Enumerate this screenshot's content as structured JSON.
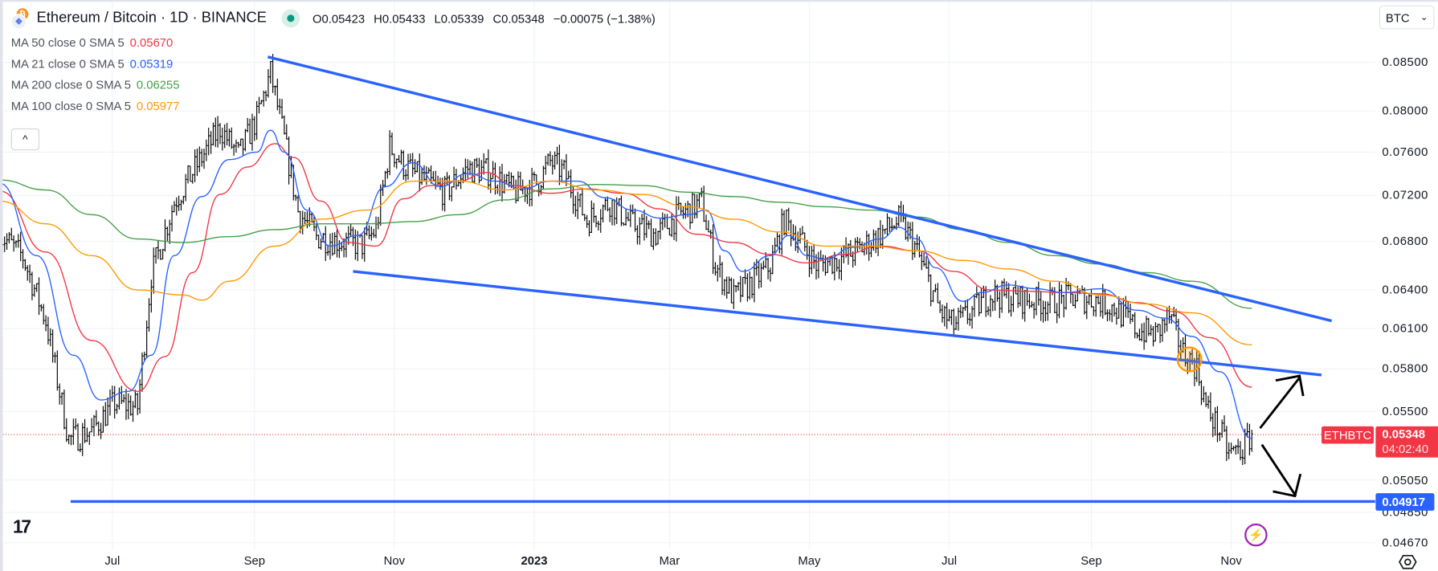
{
  "header": {
    "title": "Ethereum / Bitcoin · 1D · BINANCE",
    "open": "O0.05423",
    "high": "H0.05433",
    "low": "L0.05339",
    "close": "C0.05348",
    "change": "−0.00075 (−1.38%)",
    "market_status_color": "#089981"
  },
  "indicators": [
    {
      "label": "MA 50 close 0 SMA 5",
      "value": "0.05670",
      "color": "#f23645"
    },
    {
      "label": "MA 21 close 0 SMA 5",
      "value": "0.05319",
      "color": "#2962ff"
    },
    {
      "label": "MA 200 close 0 SMA 5",
      "value": "0.06255",
      "color": "#43a047"
    },
    {
      "label": "MA 100 close 0 SMA 5",
      "value": "0.05977",
      "color": "#ff9800"
    }
  ],
  "collapse_label": "^",
  "currency": "BTC",
  "symbol_tag": "ETHBTC",
  "last_price": "0.05348",
  "countdown": "04:02:40",
  "support_price": "0.04917",
  "chart_data": {
    "type": "ohlc",
    "scale": "log",
    "ylim": [
      0.0462,
      0.087
    ],
    "grid": true,
    "y_ticks": [
      "0.08500",
      "0.08000",
      "0.07600",
      "0.07200",
      "0.06800",
      "0.06400",
      "0.06100",
      "0.05800",
      "0.05500",
      "0.05050",
      "0.04850",
      "0.04670"
    ],
    "x_ticks": [
      {
        "label": "Jul",
        "date": "2022-07-01",
        "bold": false
      },
      {
        "label": "Sep",
        "date": "2022-09-01",
        "bold": false
      },
      {
        "label": "Nov",
        "date": "2022-11-01",
        "bold": false
      },
      {
        "label": "2023",
        "date": "2023-01-01",
        "bold": true
      },
      {
        "label": "Mar",
        "date": "2023-03-01",
        "bold": false
      },
      {
        "label": "May",
        "date": "2023-05-01",
        "bold": false
      },
      {
        "label": "Jul",
        "date": "2023-07-01",
        "bold": false
      },
      {
        "label": "Sep",
        "date": "2023-09-01",
        "bold": false
      },
      {
        "label": "Nov",
        "date": "2023-11-01",
        "bold": false
      }
    ],
    "close_series": [
      [
        "2022-05-13",
        0.0686
      ],
      [
        "2022-05-23",
        0.0667
      ],
      [
        "2022-06-02",
        0.0616
      ],
      [
        "2022-06-12",
        0.0531
      ],
      [
        "2022-06-22",
        0.0537
      ],
      [
        "2022-07-02",
        0.0556
      ],
      [
        "2022-07-12",
        0.0553
      ],
      [
        "2022-07-18",
        0.0652
      ],
      [
        "2022-07-28",
        0.0714
      ],
      [
        "2022-08-07",
        0.0748
      ],
      [
        "2022-08-17",
        0.0783
      ],
      [
        "2022-08-25",
        0.0757
      ],
      [
        "2022-09-02",
        0.0792
      ],
      [
        "2022-09-08",
        0.0839
      ],
      [
        "2022-09-14",
        0.0772
      ],
      [
        "2022-09-20",
        0.0706
      ],
      [
        "2022-09-28",
        0.0684
      ],
      [
        "2022-10-08",
        0.068
      ],
      [
        "2022-10-18",
        0.0677
      ],
      [
        "2022-10-24",
        0.069
      ],
      [
        "2022-10-30",
        0.0765
      ],
      [
        "2022-11-05",
        0.0748
      ],
      [
        "2022-11-13",
        0.0735
      ],
      [
        "2022-11-23",
        0.0723
      ],
      [
        "2022-12-03",
        0.0745
      ],
      [
        "2022-12-13",
        0.0741
      ],
      [
        "2022-12-23",
        0.0723
      ],
      [
        "2023-01-02",
        0.0731
      ],
      [
        "2023-01-08",
        0.0751
      ],
      [
        "2023-01-14",
        0.0741
      ],
      [
        "2023-01-24",
        0.0698
      ],
      [
        "2023-02-03",
        0.0714
      ],
      [
        "2023-02-13",
        0.0694
      ],
      [
        "2023-02-23",
        0.0686
      ],
      [
        "2023-03-05",
        0.0702
      ],
      [
        "2023-03-15",
        0.0714
      ],
      [
        "2023-03-21",
        0.066
      ],
      [
        "2023-03-29",
        0.0634
      ],
      [
        "2023-04-08",
        0.0649
      ],
      [
        "2023-04-14",
        0.066
      ],
      [
        "2023-04-20",
        0.0698
      ],
      [
        "2023-04-26",
        0.0684
      ],
      [
        "2023-05-04",
        0.066
      ],
      [
        "2023-05-12",
        0.0664
      ],
      [
        "2023-05-22",
        0.0672
      ],
      [
        "2023-06-01",
        0.0686
      ],
      [
        "2023-06-09",
        0.0698
      ],
      [
        "2023-06-15",
        0.068
      ],
      [
        "2023-06-21",
        0.0652
      ],
      [
        "2023-06-27",
        0.0623
      ],
      [
        "2023-07-03",
        0.0612
      ],
      [
        "2023-07-11",
        0.0623
      ],
      [
        "2023-07-19",
        0.0637
      ],
      [
        "2023-07-27",
        0.0634
      ],
      [
        "2023-08-04",
        0.0632
      ],
      [
        "2023-08-14",
        0.063
      ],
      [
        "2023-08-24",
        0.0634
      ],
      [
        "2023-09-03",
        0.0632
      ],
      [
        "2023-09-11",
        0.0626
      ],
      [
        "2023-09-21",
        0.0609
      ],
      [
        "2023-09-29",
        0.0605
      ],
      [
        "2023-10-05",
        0.0619
      ],
      [
        "2023-10-11",
        0.0592
      ],
      [
        "2023-10-17",
        0.0581
      ],
      [
        "2023-10-21",
        0.0553
      ],
      [
        "2023-10-27",
        0.0537
      ],
      [
        "2023-10-31",
        0.0522
      ],
      [
        "2023-11-06",
        0.0525
      ],
      [
        "2023-11-10",
        0.05348
      ]
    ],
    "series": [
      {
        "name": "MA 50 close 0 SMA 5",
        "color": "#f23645",
        "points": [
          [
            "2022-05-13",
            0.0724
          ],
          [
            "2022-06-02",
            0.0671
          ],
          [
            "2022-06-22",
            0.0601
          ],
          [
            "2022-07-12",
            0.0564
          ],
          [
            "2022-07-24",
            0.0589
          ],
          [
            "2022-08-05",
            0.0654
          ],
          [
            "2022-08-17",
            0.0721
          ],
          [
            "2022-08-29",
            0.0746
          ],
          [
            "2022-09-10",
            0.0768
          ],
          [
            "2022-09-18",
            0.0755
          ],
          [
            "2022-09-30",
            0.0715
          ],
          [
            "2022-10-12",
            0.0679
          ],
          [
            "2022-10-24",
            0.0676
          ],
          [
            "2022-11-05",
            0.0717
          ],
          [
            "2022-11-17",
            0.0729
          ],
          [
            "2022-11-29",
            0.0733
          ],
          [
            "2022-12-11",
            0.0741
          ],
          [
            "2022-12-23",
            0.0729
          ],
          [
            "2023-01-08",
            0.0722
          ],
          [
            "2023-01-24",
            0.0726
          ],
          [
            "2023-02-09",
            0.0722
          ],
          [
            "2023-02-25",
            0.0708
          ],
          [
            "2023-03-13",
            0.0686
          ],
          [
            "2023-03-29",
            0.0679
          ],
          [
            "2023-04-14",
            0.0669
          ],
          [
            "2023-04-30",
            0.0662
          ],
          [
            "2023-05-16",
            0.0669
          ],
          [
            "2023-06-01",
            0.0676
          ],
          [
            "2023-06-17",
            0.0672
          ],
          [
            "2023-07-03",
            0.0655
          ],
          [
            "2023-07-19",
            0.064
          ],
          [
            "2023-08-04",
            0.0639
          ],
          [
            "2023-08-20",
            0.0638
          ],
          [
            "2023-09-05",
            0.0637
          ],
          [
            "2023-09-21",
            0.063
          ],
          [
            "2023-10-07",
            0.0623
          ],
          [
            "2023-10-23",
            0.0603
          ],
          [
            "2023-11-10",
            0.0567
          ]
        ]
      },
      {
        "name": "MA 21 close 0 SMA 5",
        "color": "#2962ff",
        "points": [
          [
            "2022-05-13",
            0.0731
          ],
          [
            "2022-05-29",
            0.0668
          ],
          [
            "2022-06-14",
            0.059
          ],
          [
            "2022-06-26",
            0.0558
          ],
          [
            "2022-07-08",
            0.0564
          ],
          [
            "2022-07-18",
            0.059
          ],
          [
            "2022-07-28",
            0.0668
          ],
          [
            "2022-08-09",
            0.0719
          ],
          [
            "2022-08-21",
            0.0753
          ],
          [
            "2022-09-02",
            0.076
          ],
          [
            "2022-09-08",
            0.0781
          ],
          [
            "2022-09-14",
            0.076
          ],
          [
            "2022-09-24",
            0.0707
          ],
          [
            "2022-10-04",
            0.0676
          ],
          [
            "2022-10-16",
            0.0685
          ],
          [
            "2022-10-28",
            0.0728
          ],
          [
            "2022-11-09",
            0.075
          ],
          [
            "2022-11-21",
            0.0728
          ],
          [
            "2022-12-03",
            0.074
          ],
          [
            "2022-12-15",
            0.0733
          ],
          [
            "2022-12-27",
            0.0726
          ],
          [
            "2023-01-08",
            0.0733
          ],
          [
            "2023-01-20",
            0.0733
          ],
          [
            "2023-02-01",
            0.0718
          ],
          [
            "2023-02-13",
            0.0707
          ],
          [
            "2023-02-25",
            0.07
          ],
          [
            "2023-03-09",
            0.0703
          ],
          [
            "2023-03-17",
            0.0707
          ],
          [
            "2023-03-25",
            0.0672
          ],
          [
            "2023-04-02",
            0.0655
          ],
          [
            "2023-04-14",
            0.0668
          ],
          [
            "2023-04-22",
            0.0685
          ],
          [
            "2023-04-30",
            0.0668
          ],
          [
            "2023-05-08",
            0.0665
          ],
          [
            "2023-05-20",
            0.0675
          ],
          [
            "2023-06-01",
            0.0682
          ],
          [
            "2023-06-09",
            0.0692
          ],
          [
            "2023-06-17",
            0.0682
          ],
          [
            "2023-06-25",
            0.0658
          ],
          [
            "2023-07-07",
            0.0631
          ],
          [
            "2023-07-15",
            0.0638
          ],
          [
            "2023-07-27",
            0.0644
          ],
          [
            "2023-08-08",
            0.0641
          ],
          [
            "2023-08-20",
            0.0638
          ],
          [
            "2023-09-05",
            0.0641
          ],
          [
            "2023-09-21",
            0.0624
          ],
          [
            "2023-10-03",
            0.0618
          ],
          [
            "2023-10-15",
            0.0604
          ],
          [
            "2023-10-27",
            0.0578
          ],
          [
            "2023-11-10",
            0.05319
          ]
        ]
      },
      {
        "name": "MA 200 close 0 SMA 5",
        "color": "#43a047",
        "points": [
          [
            "2022-05-13",
            0.0734
          ],
          [
            "2022-06-02",
            0.0725
          ],
          [
            "2022-06-22",
            0.0703
          ],
          [
            "2022-07-12",
            0.0682
          ],
          [
            "2022-08-01",
            0.0679
          ],
          [
            "2022-08-21",
            0.0684
          ],
          [
            "2022-09-10",
            0.069
          ],
          [
            "2022-09-30",
            0.0695
          ],
          [
            "2022-10-20",
            0.0695
          ],
          [
            "2022-11-09",
            0.0697
          ],
          [
            "2022-11-29",
            0.0703
          ],
          [
            "2022-12-19",
            0.0716
          ],
          [
            "2023-01-08",
            0.0726
          ],
          [
            "2023-01-28",
            0.073
          ],
          [
            "2023-02-17",
            0.0729
          ],
          [
            "2023-03-09",
            0.0723
          ],
          [
            "2023-03-29",
            0.0719
          ],
          [
            "2023-04-18",
            0.0714
          ],
          [
            "2023-05-08",
            0.071
          ],
          [
            "2023-05-28",
            0.0707
          ],
          [
            "2023-06-17",
            0.0701
          ],
          [
            "2023-07-07",
            0.069
          ],
          [
            "2023-07-27",
            0.0679
          ],
          [
            "2023-08-16",
            0.0668
          ],
          [
            "2023-09-05",
            0.0661
          ],
          [
            "2023-09-25",
            0.0654
          ],
          [
            "2023-10-15",
            0.0647
          ],
          [
            "2023-11-10",
            0.06255
          ]
        ]
      },
      {
        "name": "MA 100 close 0 SMA 5",
        "color": "#ff9800",
        "points": [
          [
            "2022-05-13",
            0.0715
          ],
          [
            "2022-06-02",
            0.0695
          ],
          [
            "2022-06-22",
            0.0668
          ],
          [
            "2022-07-12",
            0.064
          ],
          [
            "2022-08-01",
            0.0636
          ],
          [
            "2022-08-09",
            0.0632
          ],
          [
            "2022-08-21",
            0.0647
          ],
          [
            "2022-09-10",
            0.0676
          ],
          [
            "2022-09-30",
            0.0699
          ],
          [
            "2022-10-20",
            0.0707
          ],
          [
            "2022-11-09",
            0.0733
          ],
          [
            "2022-11-29",
            0.0733
          ],
          [
            "2022-12-19",
            0.0725
          ],
          [
            "2023-01-08",
            0.0733
          ],
          [
            "2023-01-28",
            0.0725
          ],
          [
            "2023-02-17",
            0.0721
          ],
          [
            "2023-03-09",
            0.071
          ],
          [
            "2023-03-29",
            0.0699
          ],
          [
            "2023-04-18",
            0.0688
          ],
          [
            "2023-05-08",
            0.0676
          ],
          [
            "2023-05-28",
            0.0676
          ],
          [
            "2023-06-17",
            0.0672
          ],
          [
            "2023-07-07",
            0.0664
          ],
          [
            "2023-07-27",
            0.0657
          ],
          [
            "2023-08-16",
            0.0647
          ],
          [
            "2023-09-05",
            0.0636
          ],
          [
            "2023-09-25",
            0.0629
          ],
          [
            "2023-10-15",
            0.0622
          ],
          [
            "2023-11-10",
            0.05977
          ]
        ]
      }
    ]
  }
}
